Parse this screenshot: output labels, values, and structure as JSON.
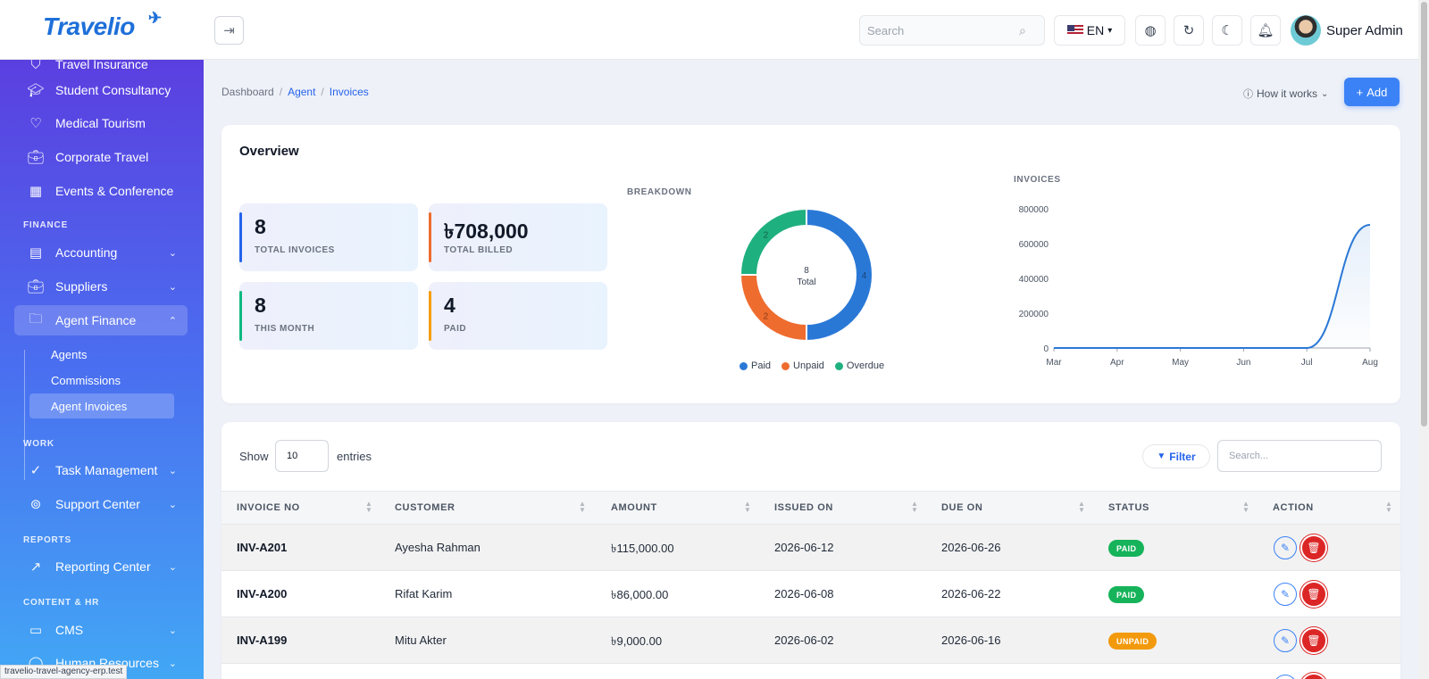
{
  "app": {
    "logo": "Travelio"
  },
  "header": {
    "search_placeholder": "Search",
    "language": "EN",
    "user_name": "Super Admin"
  },
  "sidebar": {
    "items_top": [
      {
        "label": "Travel Insurance",
        "icon": "shield-icon"
      },
      {
        "label": "Student Consultancy",
        "icon": "graduation-cap-icon"
      },
      {
        "label": "Medical Tourism",
        "icon": "heart-icon"
      },
      {
        "label": "Corporate Travel",
        "icon": "briefcase-icon"
      },
      {
        "label": "Events & Conference",
        "icon": "calendar-icon"
      }
    ],
    "section_finance": "FINANCE",
    "finance_items": [
      {
        "label": "Accounting",
        "icon": "calculator-icon"
      },
      {
        "label": "Suppliers",
        "icon": "briefcase-icon"
      },
      {
        "label": "Agent Finance",
        "icon": "folder-icon"
      }
    ],
    "agent_finance_sub": [
      "Agents",
      "Commissions",
      "Agent Invoices"
    ],
    "section_work": "WORK",
    "work_items": [
      {
        "label": "Task Management",
        "icon": "check-circle-icon"
      },
      {
        "label": "Support Center",
        "icon": "lifebuoy-icon"
      }
    ],
    "section_reports": "REPORTS",
    "reports_items": [
      {
        "label": "Reporting Center",
        "icon": "trend-line-icon"
      }
    ],
    "section_content": "CONTENT & HR",
    "content_items": [
      {
        "label": "CMS",
        "icon": "monitor-icon"
      },
      {
        "label": "Human Resources",
        "icon": "user-icon"
      }
    ]
  },
  "status_url": "travelio-travel-agency-erp.test",
  "breadcrumb": {
    "home": "Dashboard",
    "section": "Agent",
    "current": "Invoices"
  },
  "page_actions": {
    "how_it_works": "How it works",
    "add": "Add"
  },
  "overview": {
    "title": "Overview",
    "stats": [
      {
        "value": "8",
        "label": "TOTAL INVOICES",
        "color": "#2563eb"
      },
      {
        "value": "৳708,000",
        "label": "TOTAL BILLED",
        "color": "#ef6c2f"
      },
      {
        "value": "8",
        "label": "THIS MONTH",
        "color": "#10b981"
      },
      {
        "value": "4",
        "label": "PAID",
        "color": "#f59e0b"
      }
    ],
    "breakdown_label": "BREAKDOWN",
    "invoices_label": "INVOICES"
  },
  "chart_data": [
    {
      "type": "pie",
      "title": "BREAKDOWN",
      "center_value": "8",
      "center_label": "Total",
      "categories": [
        "Paid",
        "Unpaid",
        "Overdue"
      ],
      "values": [
        4,
        2,
        2
      ],
      "colors": [
        "#2a78d6",
        "#ef6c2f",
        "#1fb07f"
      ]
    },
    {
      "type": "area",
      "title": "INVOICES",
      "categories": [
        "Mar",
        "Apr",
        "May",
        "Jun",
        "Jul",
        "Aug"
      ],
      "values": [
        0,
        0,
        0,
        0,
        0,
        708000
      ],
      "yticks": [
        "800000",
        "600000",
        "400000",
        "200000",
        "0"
      ],
      "ylim": [
        0,
        800000
      ],
      "color": "#2a78d6"
    }
  ],
  "table": {
    "show_label": "Show",
    "entries_value": "10",
    "entries_label": "entries",
    "filter_label": "Filter",
    "search_placeholder": "Search...",
    "columns": [
      "INVOICE NO",
      "CUSTOMER",
      "AMOUNT",
      "ISSUED ON",
      "DUE ON",
      "STATUS",
      "ACTION"
    ],
    "rows": [
      {
        "invoice": "INV-A201",
        "customer": "Ayesha Rahman",
        "amount": "৳115,000.00",
        "issued": "2026-06-12",
        "due": "2026-06-26",
        "status": "PAID",
        "status_color": "#16b35a"
      },
      {
        "invoice": "INV-A200",
        "customer": "Rifat Karim",
        "amount": "৳86,000.00",
        "issued": "2026-06-08",
        "due": "2026-06-22",
        "status": "PAID",
        "status_color": "#16b35a"
      },
      {
        "invoice": "INV-A199",
        "customer": "Mitu Akter",
        "amount": "৳9,000.00",
        "issued": "2026-06-02",
        "due": "2026-06-16",
        "status": "UNPAID",
        "status_color": "#f29a0c"
      }
    ]
  }
}
